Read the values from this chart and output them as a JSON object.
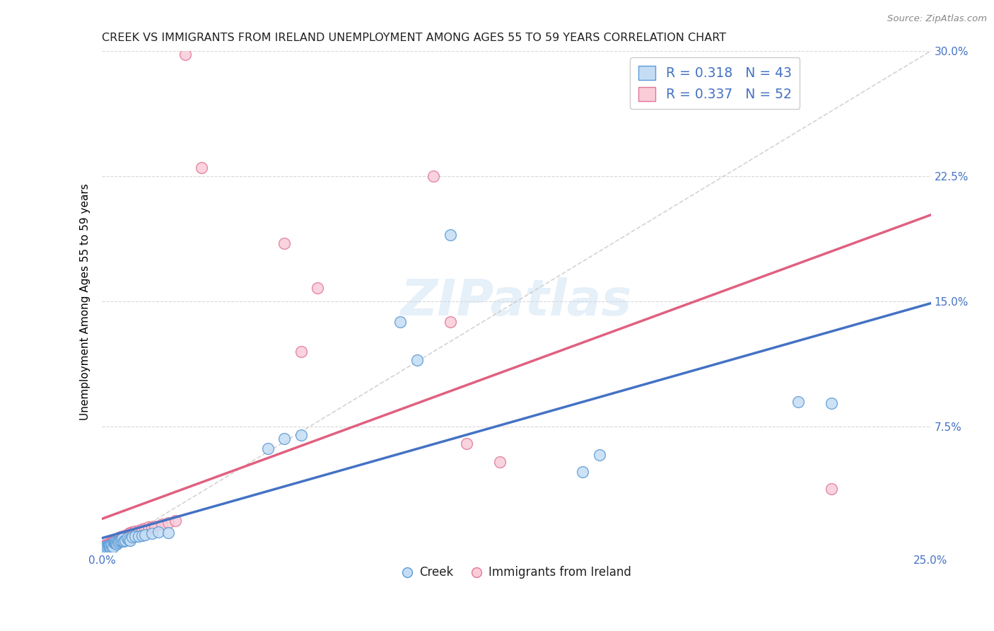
{
  "title": "CREEK VS IMMIGRANTS FROM IRELAND UNEMPLOYMENT AMONG AGES 55 TO 59 YEARS CORRELATION CHART",
  "source": "Source: ZipAtlas.com",
  "ylabel": "Unemployment Among Ages 55 to 59 years",
  "xlim": [
    0.0,
    0.25
  ],
  "ylim": [
    0.0,
    0.3
  ],
  "xticks": [
    0.0,
    0.05,
    0.1,
    0.15,
    0.2,
    0.25
  ],
  "xticklabels": [
    "0.0%",
    "",
    "",
    "",
    "",
    "25.0%"
  ],
  "yticks": [
    0.0,
    0.075,
    0.15,
    0.225,
    0.3
  ],
  "yticklabels": [
    "",
    "7.5%",
    "15.0%",
    "22.5%",
    "30.0%"
  ],
  "creek_color": "#c5ddf4",
  "ireland_color": "#f9ccd8",
  "creek_edge_color": "#5b9bd5",
  "ireland_edge_color": "#e07898",
  "creek_line_color": "#4472c4",
  "ireland_line_color": "#e06080",
  "ref_line_color": "#cccccc",
  "background_color": "#ffffff",
  "grid_color": "#d8d8d8",
  "creek_R": 0.318,
  "creek_N": 43,
  "ireland_R": 0.337,
  "ireland_N": 52,
  "creek_x": [
    0.0005,
    0.001,
    0.0015,
    0.0018,
    0.002,
    0.0022,
    0.0025,
    0.0028,
    0.003,
    0.0033,
    0.0035,
    0.0038,
    0.004,
    0.0042,
    0.0045,
    0.0048,
    0.005,
    0.0055,
    0.0058,
    0.006,
    0.0065,
    0.007,
    0.0075,
    0.008,
    0.0085,
    0.009,
    0.01,
    0.011,
    0.012,
    0.013,
    0.015,
    0.017,
    0.02,
    0.05,
    0.055,
    0.06,
    0.09,
    0.095,
    0.105,
    0.145,
    0.15,
    0.21,
    0.22
  ],
  "creek_y": [
    0.003,
    0.0025,
    0.003,
    0.0035,
    0.004,
    0.0035,
    0.0028,
    0.0032,
    0.0045,
    0.003,
    0.0055,
    0.006,
    0.005,
    0.0058,
    0.0048,
    0.0055,
    0.0065,
    0.007,
    0.0068,
    0.008,
    0.0065,
    0.007,
    0.008,
    0.0075,
    0.007,
    0.009,
    0.0095,
    0.0095,
    0.01,
    0.0105,
    0.011,
    0.012,
    0.0115,
    0.062,
    0.068,
    0.07,
    0.138,
    0.115,
    0.19,
    0.048,
    0.058,
    0.09,
    0.089
  ],
  "ireland_x": [
    0.0005,
    0.0008,
    0.001,
    0.0012,
    0.0014,
    0.0016,
    0.0018,
    0.002,
    0.0022,
    0.0024,
    0.0026,
    0.0028,
    0.003,
    0.0032,
    0.0034,
    0.0036,
    0.0038,
    0.004,
    0.0042,
    0.0045,
    0.0048,
    0.005,
    0.0055,
    0.0058,
    0.006,
    0.0065,
    0.007,
    0.0075,
    0.008,
    0.0085,
    0.009,
    0.0095,
    0.01,
    0.011,
    0.012,
    0.013,
    0.014,
    0.015,
    0.016,
    0.018,
    0.02,
    0.022,
    0.025,
    0.03,
    0.055,
    0.06,
    0.065,
    0.1,
    0.105,
    0.11,
    0.12,
    0.22
  ],
  "ireland_y": [
    0.0035,
    0.004,
    0.0038,
    0.0042,
    0.003,
    0.0045,
    0.0048,
    0.004,
    0.0052,
    0.0055,
    0.005,
    0.006,
    0.0058,
    0.0062,
    0.0065,
    0.0055,
    0.007,
    0.0068,
    0.0075,
    0.0072,
    0.008,
    0.0085,
    0.009,
    0.0088,
    0.0095,
    0.0092,
    0.01,
    0.0105,
    0.011,
    0.0115,
    0.012,
    0.0118,
    0.0125,
    0.013,
    0.0135,
    0.014,
    0.0148,
    0.015,
    0.0155,
    0.0165,
    0.0175,
    0.0188,
    0.298,
    0.23,
    0.185,
    0.12,
    0.158,
    0.225,
    0.138,
    0.065,
    0.054,
    0.038
  ],
  "legend_creek_label": "R = 0.318   N = 43",
  "legend_ireland_label": "R = 0.337   N = 52",
  "creek_legend": "Creek",
  "ireland_legend": "Immigrants from Ireland"
}
